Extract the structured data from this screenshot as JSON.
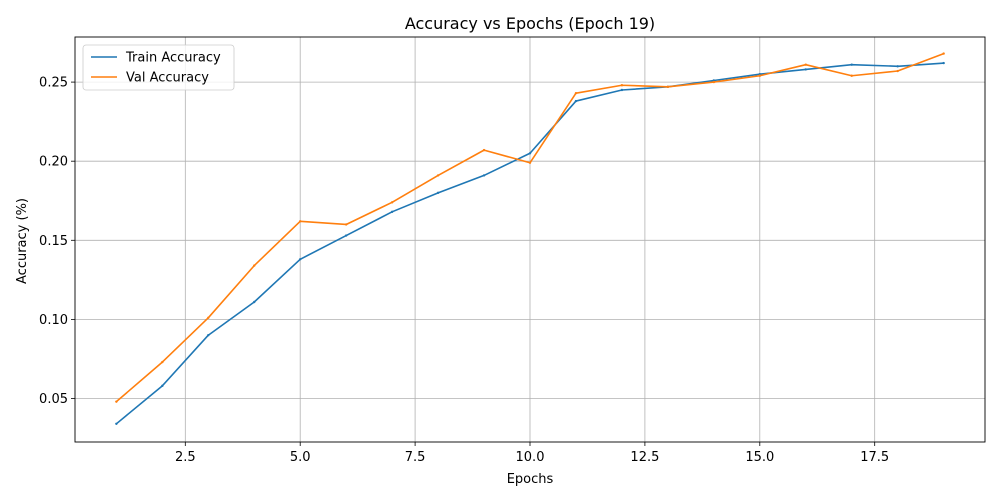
{
  "chart_data": {
    "type": "line",
    "title": "Accuracy vs Epochs (Epoch 19)",
    "xlabel": "Epochs",
    "ylabel": "Accuracy (%)",
    "xlim": [
      0.1,
      19.9
    ],
    "ylim": [
      0.0225,
      0.2785
    ],
    "xticks": [
      2.5,
      5.0,
      7.5,
      10.0,
      12.5,
      15.0,
      17.5
    ],
    "xtick_labels": [
      "2.5",
      "5.0",
      "7.5",
      "10.0",
      "12.5",
      "15.0",
      "17.5"
    ],
    "yticks": [
      0.05,
      0.1,
      0.15,
      0.2,
      0.25
    ],
    "ytick_labels": [
      "0.05",
      "0.10",
      "0.15",
      "0.20",
      "0.25"
    ],
    "grid": true,
    "legend_position": "top-left",
    "x": [
      1,
      2,
      3,
      4,
      5,
      6,
      7,
      8,
      9,
      10,
      11,
      12,
      13,
      14,
      15,
      16,
      17,
      18,
      19
    ],
    "series": [
      {
        "name": "Train Accuracy",
        "color": "#1f77b4",
        "values": [
          0.034,
          0.058,
          0.09,
          0.111,
          0.138,
          0.153,
          0.168,
          0.18,
          0.191,
          0.205,
          0.238,
          0.245,
          0.247,
          0.251,
          0.255,
          0.258,
          0.261,
          0.26,
          0.262
        ]
      },
      {
        "name": "Val Accuracy",
        "color": "#ff7f0e",
        "values": [
          0.048,
          0.073,
          0.101,
          0.134,
          0.162,
          0.16,
          0.174,
          0.191,
          0.207,
          0.199,
          0.243,
          0.248,
          0.247,
          0.25,
          0.254,
          0.261,
          0.254,
          0.257,
          0.268
        ]
      }
    ]
  }
}
